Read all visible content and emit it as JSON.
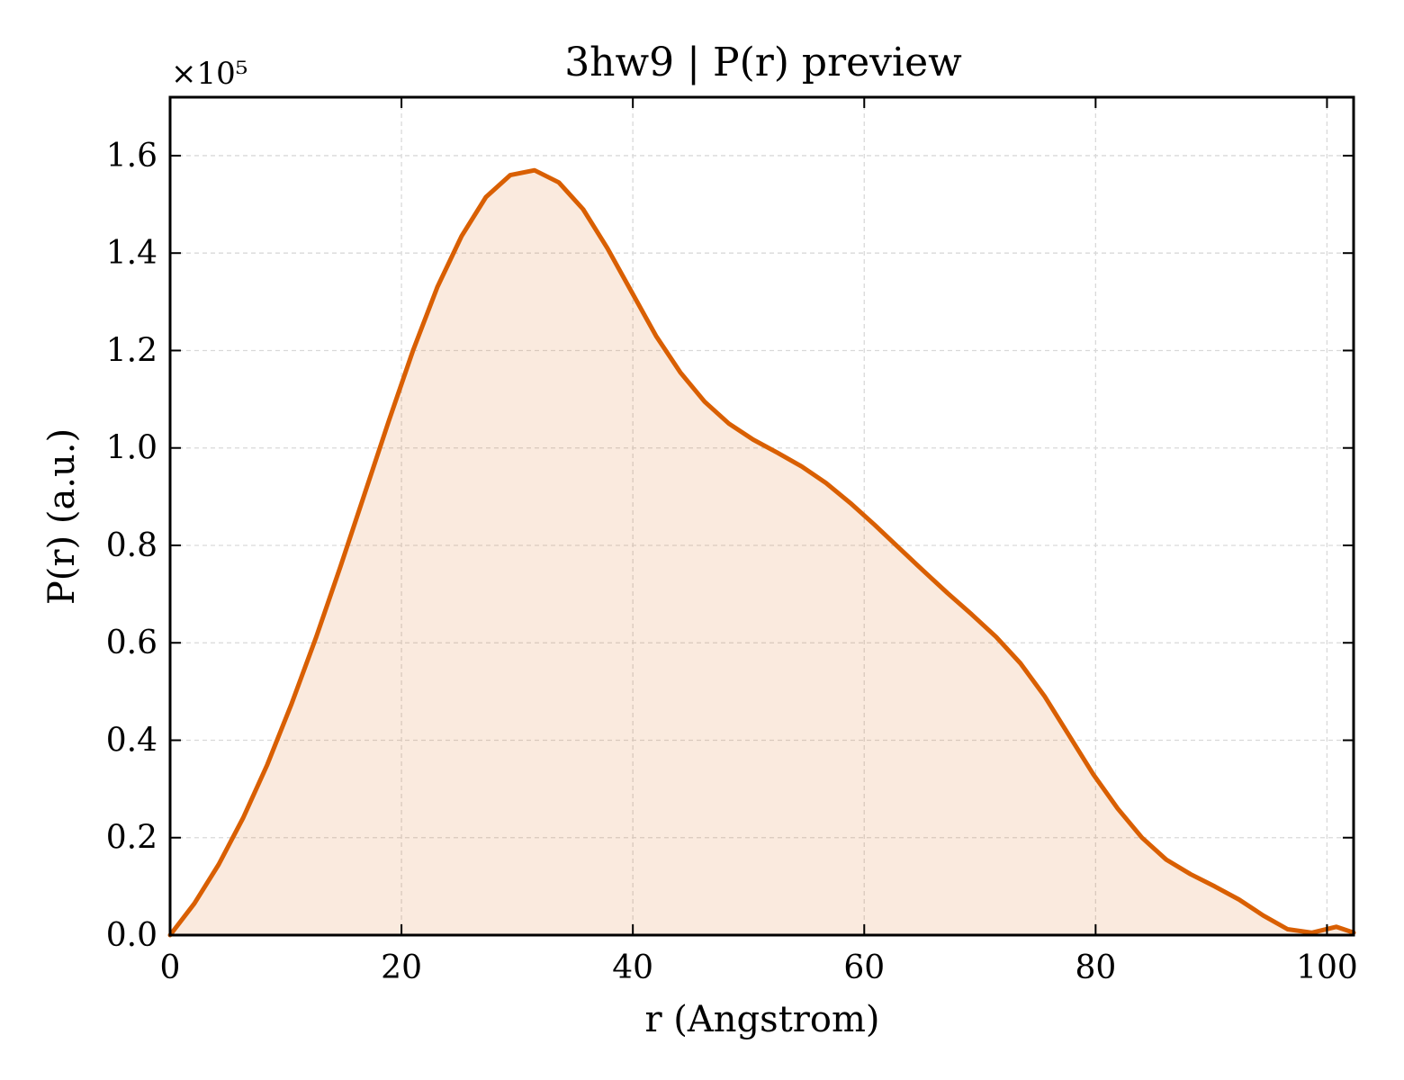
{
  "chart_data": {
    "type": "area",
    "title": "3hw9 | P(r) preview",
    "xlabel": "r (Angstrom)",
    "ylabel": "P(r) (a.u.)",
    "y_multiplier_label": "×10⁵",
    "y_scale_factor": 100000,
    "xlim": [
      0,
      102.3
    ],
    "ylim": [
      0,
      172000
    ],
    "xticks": [
      0,
      20,
      40,
      60,
      80,
      100
    ],
    "yticks": [
      0,
      20000,
      40000,
      60000,
      80000,
      100000,
      120000,
      140000,
      160000
    ],
    "ytick_labels": [
      "0.0",
      "0.2",
      "0.4",
      "0.6",
      "0.8",
      "1.0",
      "1.2",
      "1.4",
      "1.6"
    ],
    "grid": true,
    "line_color": "#d95f02",
    "fill_color": "#d95f02",
    "fill_opacity": 0.13,
    "series": [
      {
        "x": [
          0,
          2.1,
          4.2,
          6.3,
          8.4,
          10.5,
          12.6,
          14.7,
          16.8,
          18.9,
          21.0,
          23.1,
          25.2,
          27.3,
          29.4,
          31.5,
          33.6,
          35.7,
          37.8,
          39.9,
          42.0,
          44.1,
          46.2,
          48.3,
          50.4,
          52.5,
          54.6,
          56.7,
          58.8,
          60.9,
          63.0,
          65.1,
          67.2,
          69.3,
          71.4,
          73.5,
          75.6,
          77.7,
          79.8,
          81.9,
          84.0,
          86.1,
          88.2,
          90.3,
          92.4,
          94.5,
          96.6,
          98.7,
          100.8,
          102.3
        ],
        "y": [
          0,
          6500,
          14500,
          24000,
          35000,
          47500,
          61000,
          75500,
          90500,
          105500,
          120000,
          133000,
          143500,
          151500,
          156000,
          157000,
          154500,
          149000,
          141000,
          132000,
          123000,
          115500,
          109500,
          105000,
          101700,
          99000,
          96200,
          92800,
          88700,
          84200,
          79500,
          74800,
          70200,
          65800,
          61200,
          55800,
          49000,
          41000,
          33000,
          26000,
          20000,
          15500,
          12500,
          10000,
          7300,
          4000,
          1200,
          500,
          1700,
          500
        ]
      }
    ]
  }
}
